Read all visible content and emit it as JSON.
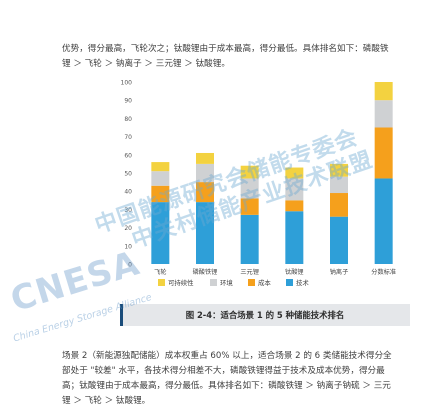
{
  "paragraph_top": "优势，得分最高，飞轮次之；钛酸锂由于成本最高，得分最低。具体排名如下：磷酸铁锂 ＞ 飞轮 ＞ 钠离子 ＞ 三元锂 ＞ 钛酸锂。",
  "paragraph_bottom": "场景 2（新能源独配储能）成本权重占 60% 以上，适合场景 2 的 6 类储能技术得分全部处于 \"较差\" 水平，各技术得分相差不大，磷酸铁锂得益于技术及成本优势，得分最高；钛酸锂由于成本最高，得分最低。具体排名如下：磷酸铁锂 ＞ 钠离子钠硫 ＞ 三元锂 ＞ 飞轮 ＞ 钛酸锂。",
  "caption": "图 2-4：适合场景 1 的 5 种储能技术排名",
  "watermark": {
    "line1": "中国能源研究会储能专委会",
    "line2": "中关村储能产业技术联盟",
    "en": "CNESA",
    "en_sub": "China Energy Storage Alliance"
  },
  "chart_data": {
    "type": "bar",
    "stacked": true,
    "categories": [
      "飞轮",
      "磷酸铁锂",
      "三元锂",
      "钛酸锂",
      "钠离子",
      "分数标准"
    ],
    "series": [
      {
        "name": "技术",
        "color": "#2e9fd8",
        "values": [
          34,
          34,
          27,
          29,
          26,
          47
        ]
      },
      {
        "name": "成本",
        "color": "#f5a01c",
        "values": [
          9,
          11,
          9,
          6,
          13,
          28
        ]
      },
      {
        "name": "环境",
        "color": "#cfd1d3",
        "values": [
          8,
          10,
          11,
          12,
          9,
          15
        ]
      },
      {
        "name": "可持续性",
        "color": "#f3d240",
        "values": [
          5,
          6,
          7,
          6,
          7,
          10
        ]
      }
    ],
    "ylim": [
      0,
      100
    ],
    "yticks": [
      0,
      10,
      20,
      30,
      40,
      50,
      60,
      70,
      80,
      90,
      100
    ],
    "legend_order": [
      "可持续性",
      "环境",
      "成本",
      "技术"
    ],
    "legend_position": "bottom",
    "grid": false
  }
}
